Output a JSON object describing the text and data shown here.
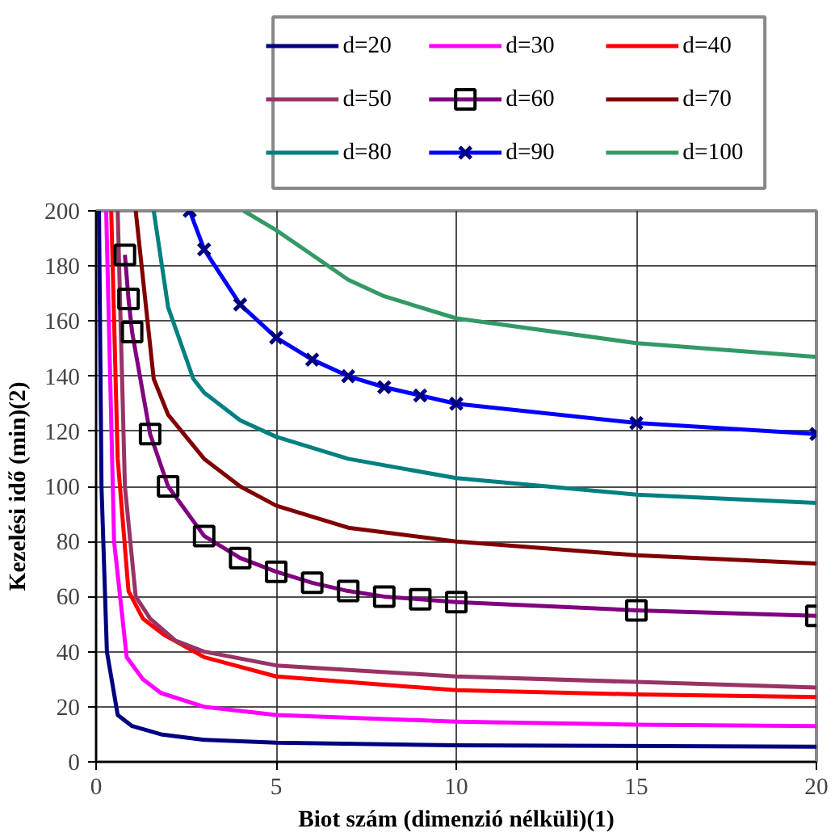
{
  "chart_data": {
    "type": "line",
    "xlabel": "Biot szám (dimenzió nélküli)(1)",
    "ylabel": "Kezelési idő (min)(2)",
    "xlim": [
      0,
      20
    ],
    "ylim": [
      0,
      200
    ],
    "xticks": [
      0,
      5,
      10,
      15,
      20
    ],
    "yticks": [
      0,
      20,
      40,
      60,
      80,
      100,
      120,
      140,
      160,
      180,
      200
    ],
    "grid": true,
    "legend": "top",
    "marker": "none",
    "line_style": "solid",
    "series": [
      {
        "name": "d=20",
        "color": "#000080",
        "x": [
          0.08,
          0.15,
          0.3,
          0.6,
          1,
          1.8,
          3,
          5,
          10,
          20
        ],
        "values": [
          200,
          100,
          40,
          17,
          13,
          10,
          8,
          7,
          6,
          5.5
        ]
      },
      {
        "name": "d=30",
        "color": "#ff00ff",
        "x": [
          0.28,
          0.5,
          0.85,
          1.3,
          1.8,
          3,
          5,
          10,
          15,
          20
        ],
        "values": [
          200,
          80,
          38,
          30,
          25,
          20,
          17,
          14.6,
          13.5,
          13
        ]
      },
      {
        "name": "d=40",
        "color": "#ff0000",
        "x": [
          0.42,
          0.6,
          0.9,
          1.3,
          1.9,
          3,
          5,
          10,
          15,
          20
        ],
        "values": [
          200,
          110,
          62,
          52,
          46,
          38,
          31,
          26,
          24.5,
          23.5
        ]
      },
      {
        "name": "d=50",
        "color": "#993366",
        "x": [
          0.6,
          0.8,
          1.1,
          1.5,
          2.2,
          3,
          5,
          10,
          15,
          20
        ],
        "values": [
          200,
          100,
          60,
          52,
          44,
          40,
          35,
          31,
          29,
          27
        ]
      },
      {
        "name": "d=60",
        "color": "#800080",
        "marker": "square",
        "x": [
          0.8,
          0.9,
          1,
          1.5,
          2,
          3,
          4,
          5,
          6,
          7,
          8,
          9,
          10,
          15,
          20
        ],
        "values": [
          184,
          168,
          156,
          119,
          100,
          82,
          74,
          69,
          65,
          62,
          60,
          59,
          58,
          55,
          53
        ]
      },
      {
        "name": "d=70",
        "color": "#800000",
        "x": [
          1.1,
          1.6,
          2,
          3,
          4,
          5,
          7,
          10,
          15,
          20
        ],
        "values": [
          200,
          139,
          126,
          110,
          100,
          93,
          85,
          80,
          75,
          72
        ]
      },
      {
        "name": "d=80",
        "color": "#008080",
        "x": [
          1.6,
          2,
          2.7,
          3,
          4,
          5,
          7,
          10,
          15,
          20
        ],
        "values": [
          200,
          165,
          139,
          134,
          124,
          118,
          110,
          103,
          97,
          94
        ]
      },
      {
        "name": "d=90",
        "color": "#0000ff",
        "marker": "cross",
        "x": [
          2.6,
          3,
          4,
          5,
          6,
          7,
          8,
          9,
          10,
          15,
          20
        ],
        "values": [
          200,
          186,
          166,
          154,
          146,
          140,
          136,
          133,
          130,
          123,
          119
        ]
      },
      {
        "name": "d=100",
        "color": "#339966",
        "x": [
          4.1,
          5,
          6,
          7,
          8,
          10,
          15,
          20
        ],
        "values": [
          200,
          193,
          184,
          175,
          169,
          161,
          152,
          147
        ]
      }
    ]
  }
}
